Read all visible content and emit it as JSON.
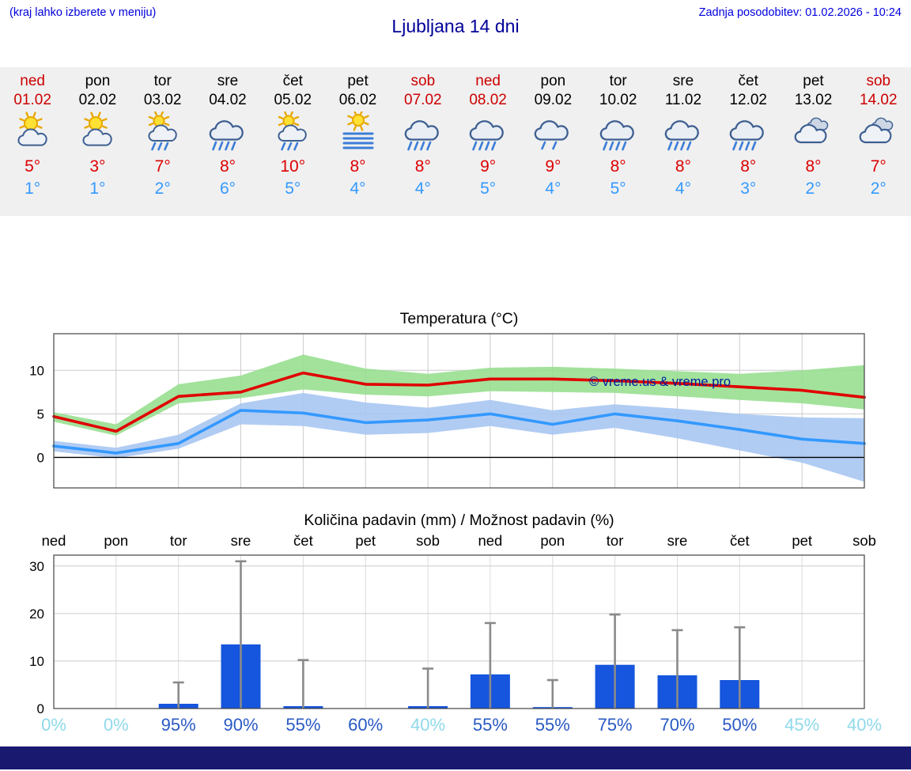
{
  "header": {
    "hint": "(kraj lahko izberete v meniju)",
    "title": "Ljubljana 14 dni",
    "updated": "Zadnja posodobitev: 01.02.2026 - 10:24"
  },
  "colors": {
    "link_blue": "#0000dd",
    "title_blue": "#000099",
    "weekend_red": "#cc0000",
    "tmax_red": "#dd0000",
    "tmin_blue": "#3399ff",
    "bottom_bar": "#191970"
  },
  "forecast": {
    "days": [
      {
        "name": "ned",
        "date": "01.02",
        "weekend": true,
        "icon": "sun-cloud",
        "tmax": "5°",
        "tmin": "1°"
      },
      {
        "name": "pon",
        "date": "02.02",
        "weekend": false,
        "icon": "sun-cloud",
        "tmax": "3°",
        "tmin": "1°"
      },
      {
        "name": "tor",
        "date": "03.02",
        "weekend": false,
        "icon": "sun-cloud-rain",
        "tmax": "7°",
        "tmin": "2°"
      },
      {
        "name": "sre",
        "date": "04.02",
        "weekend": false,
        "icon": "cloud-rain",
        "tmax": "8°",
        "tmin": "6°"
      },
      {
        "name": "čet",
        "date": "05.02",
        "weekend": false,
        "icon": "sun-cloud-rain",
        "tmax": "10°",
        "tmin": "5°"
      },
      {
        "name": "pet",
        "date": "06.02",
        "weekend": false,
        "icon": "sun-fog",
        "tmax": "8°",
        "tmin": "4°"
      },
      {
        "name": "sob",
        "date": "07.02",
        "weekend": true,
        "icon": "cloud-rain",
        "tmax": "8°",
        "tmin": "4°"
      },
      {
        "name": "ned",
        "date": "08.02",
        "weekend": true,
        "icon": "cloud-rain",
        "tmax": "9°",
        "tmin": "5°"
      },
      {
        "name": "pon",
        "date": "09.02",
        "weekend": false,
        "icon": "cloud-drizzle",
        "tmax": "9°",
        "tmin": "4°"
      },
      {
        "name": "tor",
        "date": "10.02",
        "weekend": false,
        "icon": "cloud-rain",
        "tmax": "8°",
        "tmin": "5°"
      },
      {
        "name": "sre",
        "date": "11.02",
        "weekend": false,
        "icon": "cloud-rain",
        "tmax": "8°",
        "tmin": "4°"
      },
      {
        "name": "čet",
        "date": "12.02",
        "weekend": false,
        "icon": "cloud-rain",
        "tmax": "8°",
        "tmin": "3°"
      },
      {
        "name": "pet",
        "date": "13.02",
        "weekend": false,
        "icon": "cloudy",
        "tmax": "8°",
        "tmin": "2°"
      },
      {
        "name": "sob",
        "date": "14.02",
        "weekend": true,
        "icon": "cloudy",
        "tmax": "7°",
        "tmin": "2°"
      }
    ]
  },
  "chart_data": [
    {
      "type": "line",
      "title": "Temperatura (°C)",
      "watermark": "© vreme.us & vreme.pro",
      "categories": [
        "ned",
        "pon",
        "tor",
        "sre",
        "čet",
        "pet",
        "sob",
        "ned",
        "pon",
        "tor",
        "sre",
        "čet",
        "pet",
        "sob"
      ],
      "ylim": [
        -3.5,
        14.2
      ],
      "yticks": [
        0,
        5,
        10
      ],
      "grid": true,
      "series": [
        {
          "name": "temp-max",
          "color": "#e00000",
          "values": [
            4.7,
            3.0,
            7.0,
            7.5,
            9.7,
            8.4,
            8.3,
            9.0,
            9.0,
            8.8,
            8.5,
            8.1,
            7.7,
            6.9
          ]
        },
        {
          "name": "temp-min",
          "color": "#3399ff",
          "values": [
            1.3,
            0.5,
            1.6,
            5.4,
            5.1,
            4.0,
            4.3,
            5.0,
            3.8,
            5.0,
            4.2,
            3.2,
            2.1,
            1.6
          ]
        }
      ],
      "bands": [
        {
          "name": "temp-min-range",
          "color": "#a9c7f2",
          "opacity": 0.9,
          "upper": [
            1.9,
            1.1,
            2.6,
            6.2,
            7.4,
            6.3,
            5.7,
            6.6,
            5.4,
            6.1,
            5.6,
            5.0,
            4.6,
            4.5
          ],
          "lower": [
            0.7,
            -0.1,
            1.0,
            3.8,
            3.6,
            2.6,
            2.8,
            3.6,
            2.6,
            3.4,
            2.2,
            0.8,
            -0.6,
            -2.8
          ]
        },
        {
          "name": "temp-max-range",
          "color": "#98df90",
          "opacity": 0.9,
          "upper": [
            5.2,
            3.8,
            8.4,
            9.4,
            11.8,
            10.2,
            9.6,
            10.3,
            10.4,
            10.2,
            9.9,
            9.6,
            10.0,
            10.6
          ],
          "lower": [
            4.1,
            2.5,
            6.2,
            6.8,
            7.8,
            7.2,
            7.0,
            7.6,
            7.5,
            7.4,
            7.0,
            6.6,
            6.2,
            5.5
          ]
        }
      ]
    },
    {
      "type": "bar",
      "title": "Količina padavin (mm) / Možnost padavin (%)",
      "categories": [
        "ned",
        "pon",
        "tor",
        "sre",
        "čet",
        "pet",
        "sob",
        "ned",
        "pon",
        "tor",
        "sre",
        "čet",
        "pet",
        "sob"
      ],
      "values": [
        0,
        0,
        1.0,
        13.5,
        0.5,
        0,
        0.5,
        7.2,
        0.3,
        9.2,
        7.0,
        6.0,
        0,
        0
      ],
      "whisker_max": [
        0,
        0,
        5.5,
        31.0,
        10.2,
        0,
        8.4,
        18.0,
        6.0,
        19.8,
        16.5,
        17.1,
        0,
        0
      ],
      "probabilities": [
        {
          "label": "0%",
          "muted": true
        },
        {
          "label": "0%",
          "muted": true
        },
        {
          "label": "95%",
          "muted": false
        },
        {
          "label": "90%",
          "muted": false
        },
        {
          "label": "55%",
          "muted": false
        },
        {
          "label": "60%",
          "muted": false
        },
        {
          "label": "40%",
          "muted": true
        },
        {
          "label": "55%",
          "muted": false
        },
        {
          "label": "55%",
          "muted": false
        },
        {
          "label": "75%",
          "muted": false
        },
        {
          "label": "70%",
          "muted": false
        },
        {
          "label": "50%",
          "muted": false
        },
        {
          "label": "45%",
          "muted": true
        },
        {
          "label": "40%",
          "muted": true
        }
      ],
      "bar_color": "#1655dd",
      "whisker_color": "#8a8a8a",
      "prob_color": "#2959c4",
      "prob_muted_color": "#8fd9ea",
      "ylim": [
        0,
        32.3
      ],
      "yticks": [
        0,
        10,
        20,
        30
      ],
      "grid": true
    }
  ]
}
